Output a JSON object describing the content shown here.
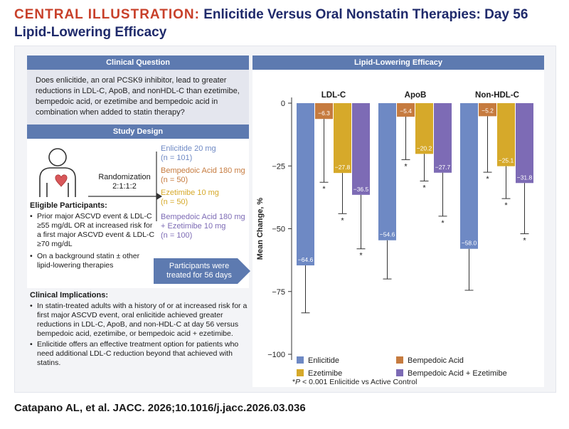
{
  "header": {
    "lead": "CENTRAL ILLUSTRATION:",
    "title": "Enlicitide Versus Oral Nonstatin Therapies: Day 56 Lipid-Lowering Efficacy"
  },
  "clinical_question": {
    "heading": "Clinical Question",
    "text": "Does enlicitide, an oral PCSK9 inhibitor, lead to greater reductions in LDL-C, ApoB, and nonHDL-C than ezetimibe, bempedoic acid, or ezetimibe and bempedoic acid in combination when added to statin therapy?"
  },
  "study_design": {
    "heading": "Study Design",
    "randomization": "Randomization 2:1:1:2",
    "arms": [
      {
        "line1": "Enlicitide 20 mg",
        "line2": "(n = 101)",
        "line3": "",
        "color": "#6e89c4"
      },
      {
        "line1": "Bempedoic Acid 180 mg",
        "line2": "(n = 50)",
        "line3": "",
        "color": "#c67b3f"
      },
      {
        "line1": "Ezetimibe 10 mg",
        "line2": "(n = 50)",
        "line3": "",
        "color": "#d6a92a"
      },
      {
        "line1": "Bempedoic Acid 180 mg",
        "line2": "+ Ezetimibe 10 mg",
        "line3": "(n = 100)",
        "color": "#7d6bb5"
      }
    ],
    "eligible_title": "Eligible Participants:",
    "eligible": [
      "Prior major ASCVD event & LDL-C ≥55 mg/dL OR at increased risk for a first major ASCVD event & LDL-C ≥70 mg/dL",
      "On a background statin ± other lipid-lowering therapies"
    ],
    "duration": "Participants were treated for 56 days"
  },
  "implications": {
    "title": "Clinical Implications:",
    "items": [
      "In statin-treated adults with a history of or at increased risk for a first major ASCVD event, oral enlicitide achieved greater reductions in LDL-C, ApoB, and non-HDL-C at day 56 versus bempedoic acid, ezetimibe, or bempedoic acid + ezetimibe.",
      "Enlicitide offers an effective treatment option for patients who need additional LDL-C reduction beyond that achieved with statins."
    ]
  },
  "chart_heading": "Lipid-Lowering Efficacy",
  "footnote_p": "P",
  "footnote": "< 0.001 Enlicitide vs Active Control",
  "citation": "Catapano AL, et al. JACC. 2026;10.1016/j.jacc.2026.03.036",
  "chart_data": {
    "type": "bar",
    "categories": [
      "LDL-C",
      "ApoB",
      "Non-HDL-C"
    ],
    "ylabel": "Mean Change, %",
    "ylim": [
      -100,
      0
    ],
    "yticks": [
      0,
      -25,
      -50,
      -75,
      -100
    ],
    "grid": false,
    "legend_position": "bottom",
    "significance_marker": "*",
    "series": [
      {
        "name": "Enlicitide",
        "color": "#6e89c4",
        "values": [
          -64.6,
          -54.6,
          -58.0
        ],
        "labels": [
          "−64.6",
          "−54.6",
          "−58.0"
        ],
        "error_low": [
          -83.5,
          -70.0,
          -74.5
        ],
        "significant": [
          false,
          false,
          false
        ]
      },
      {
        "name": "Bempedoic Acid",
        "color": "#c67b3f",
        "values": [
          -6.3,
          -5.4,
          -5.2
        ],
        "labels": [
          "−6.3",
          "−5.4",
          "−5.2"
        ],
        "error_low": [
          -31.5,
          -22.5,
          -27.5
        ],
        "significant": [
          true,
          true,
          true
        ]
      },
      {
        "name": "Ezetimibe",
        "color": "#d6a92a",
        "values": [
          -27.8,
          -20.2,
          -25.1
        ],
        "labels": [
          "−27.8",
          "−20.2",
          "−25.1"
        ],
        "error_low": [
          -44.0,
          -31.0,
          -38.0
        ],
        "significant": [
          true,
          true,
          true
        ]
      },
      {
        "name": "Bempedoic Acid + Ezetimibe",
        "color": "#7d6bb5",
        "values": [
          -36.5,
          -27.7,
          -31.8
        ],
        "labels": [
          "−36.5",
          "−27.7",
          "−31.8"
        ],
        "error_low": [
          -58.0,
          -45.0,
          -52.0
        ],
        "significant": [
          true,
          true,
          true
        ]
      }
    ]
  }
}
